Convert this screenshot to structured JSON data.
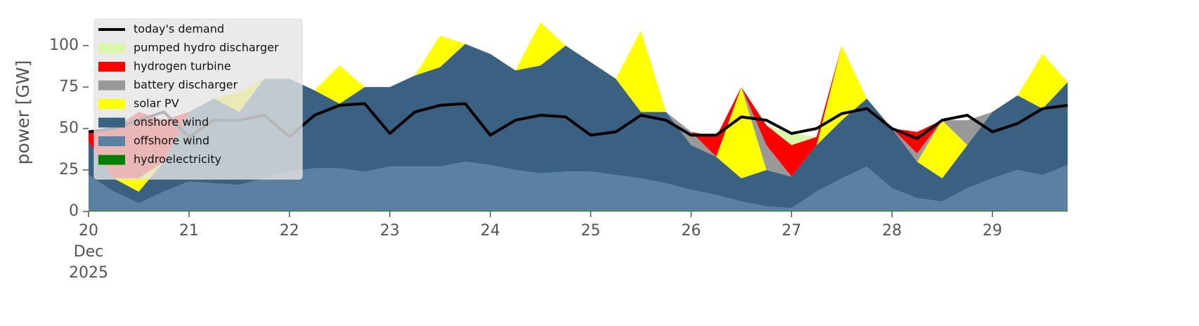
{
  "chart_data": {
    "type": "stacked_area",
    "ylabel": "power [GW]",
    "ylim": [
      0,
      119
    ],
    "yticks": [
      0,
      25,
      50,
      75,
      100
    ],
    "xlim": [
      0,
      239
    ],
    "xticks": [
      {
        "value": 0,
        "label": "20"
      },
      {
        "value": 24,
        "label": "21"
      },
      {
        "value": 48,
        "label": "22"
      },
      {
        "value": 72,
        "label": "23"
      },
      {
        "value": 96,
        "label": "24"
      },
      {
        "value": 120,
        "label": "25"
      },
      {
        "value": 144,
        "label": "26"
      },
      {
        "value": 168,
        "label": "27"
      },
      {
        "value": 192,
        "label": "28"
      },
      {
        "value": 216,
        "label": "29"
      }
    ],
    "xtick_month": "Dec",
    "xtick_year": "2025",
    "legend": "upper left",
    "x": [
      0,
      6,
      12,
      18,
      24,
      30,
      36,
      42,
      48,
      54,
      60,
      66,
      72,
      78,
      84,
      90,
      96,
      102,
      108,
      114,
      120,
      126,
      132,
      138,
      144,
      150,
      156,
      162,
      168,
      174,
      180,
      186,
      192,
      198,
      204,
      210,
      216,
      222,
      228,
      234
    ],
    "line": {
      "name": "today's demand",
      "color": "#000000",
      "values": [
        48,
        50,
        55,
        60,
        45,
        55,
        55,
        58,
        45,
        58,
        64,
        65,
        47,
        60,
        64,
        65,
        46,
        55,
        58,
        57,
        46,
        48,
        58,
        55,
        46,
        46,
        57,
        55,
        47,
        50,
        59,
        62,
        50,
        44,
        55,
        58,
        48,
        53,
        62,
        64
      ]
    },
    "series": [
      {
        "name": "pumped hydro discharger",
        "color": "#d9f7a8",
        "values": [
          0,
          0,
          0,
          0,
          0,
          0,
          0,
          0,
          0,
          0,
          0,
          0,
          0,
          0,
          0,
          0,
          0,
          0,
          0,
          0,
          0,
          0,
          0,
          0,
          0,
          0,
          0,
          0,
          7,
          0,
          0,
          0,
          0,
          0,
          0,
          0,
          0,
          0,
          0,
          0
        ]
      },
      {
        "name": "hydrogen turbine",
        "color": "#ff0000",
        "values": [
          6,
          30,
          40,
          25,
          0,
          0,
          0,
          0,
          0,
          0,
          0,
          0,
          0,
          0,
          0,
          0,
          0,
          0,
          0,
          0,
          0,
          0,
          0,
          0,
          0,
          12,
          0,
          12,
          19,
          5,
          0,
          0,
          0,
          13,
          0,
          0,
          0,
          0,
          0,
          0
        ]
      },
      {
        "name": "battery discharger",
        "color": "#999999",
        "values": [
          0,
          0,
          0,
          0,
          0,
          0,
          0,
          0,
          0,
          0,
          0,
          0,
          0,
          0,
          0,
          0,
          0,
          0,
          0,
          0,
          0,
          0,
          0,
          0,
          8,
          0,
          0,
          15,
          0,
          0,
          0,
          0,
          0,
          5,
          0,
          15,
          0,
          0,
          0,
          0
        ]
      },
      {
        "name": "solar PV",
        "color": "#ffff00",
        "values": [
          0,
          0,
          8,
          0,
          0,
          0,
          12,
          0,
          0,
          0,
          23,
          0,
          0,
          0,
          19,
          0,
          0,
          0,
          26,
          0,
          0,
          0,
          49,
          0,
          0,
          0,
          55,
          0,
          0,
          0,
          45,
          0,
          0,
          0,
          35,
          0,
          0,
          0,
          33,
          0
        ]
      },
      {
        "name": "onshore wind",
        "color": "#3b6182",
        "values": [
          20,
          8,
          7,
          18,
          42,
          51,
          44,
          60,
          56,
          47,
          39,
          51,
          48,
          55,
          60,
          71,
          67,
          60,
          65,
          76,
          66,
          58,
          40,
          43,
          27,
          23,
          14,
          22,
          19,
          28,
          35,
          41,
          36,
          22,
          14,
          26,
          40,
          45,
          40,
          50
        ]
      },
      {
        "name": "offshore wind",
        "color": "#5b80a2",
        "values": [
          21.5,
          11.5,
          4.5,
          11.5,
          17.5,
          16.5,
          15.5,
          19.5,
          23.5,
          25.5,
          25.5,
          23.5,
          26.5,
          26.5,
          26.5,
          29.5,
          27.5,
          24.5,
          22.5,
          23.5,
          23.5,
          21.5,
          19.5,
          16.5,
          12.5,
          9.5,
          5.5,
          2.5,
          1.5,
          11.5,
          19.5,
          26.5,
          13.5,
          7.5,
          5.5,
          13.5,
          19.5,
          24.5,
          21.5,
          27.5
        ]
      },
      {
        "name": "hydroelectricity",
        "color": "#008000",
        "values": [
          0.5,
          0.5,
          0.5,
          0.5,
          0.5,
          0.5,
          0.5,
          0.5,
          0.5,
          0.5,
          0.5,
          0.5,
          0.5,
          0.5,
          0.5,
          0.5,
          0.5,
          0.5,
          0.5,
          0.5,
          0.5,
          0.5,
          0.5,
          0.5,
          0.5,
          0.5,
          0.5,
          0.5,
          0.5,
          0.5,
          0.5,
          0.5,
          0.5,
          0.5,
          0.5,
          0.5,
          0.5,
          0.5,
          0.5,
          0.5
        ]
      }
    ]
  }
}
